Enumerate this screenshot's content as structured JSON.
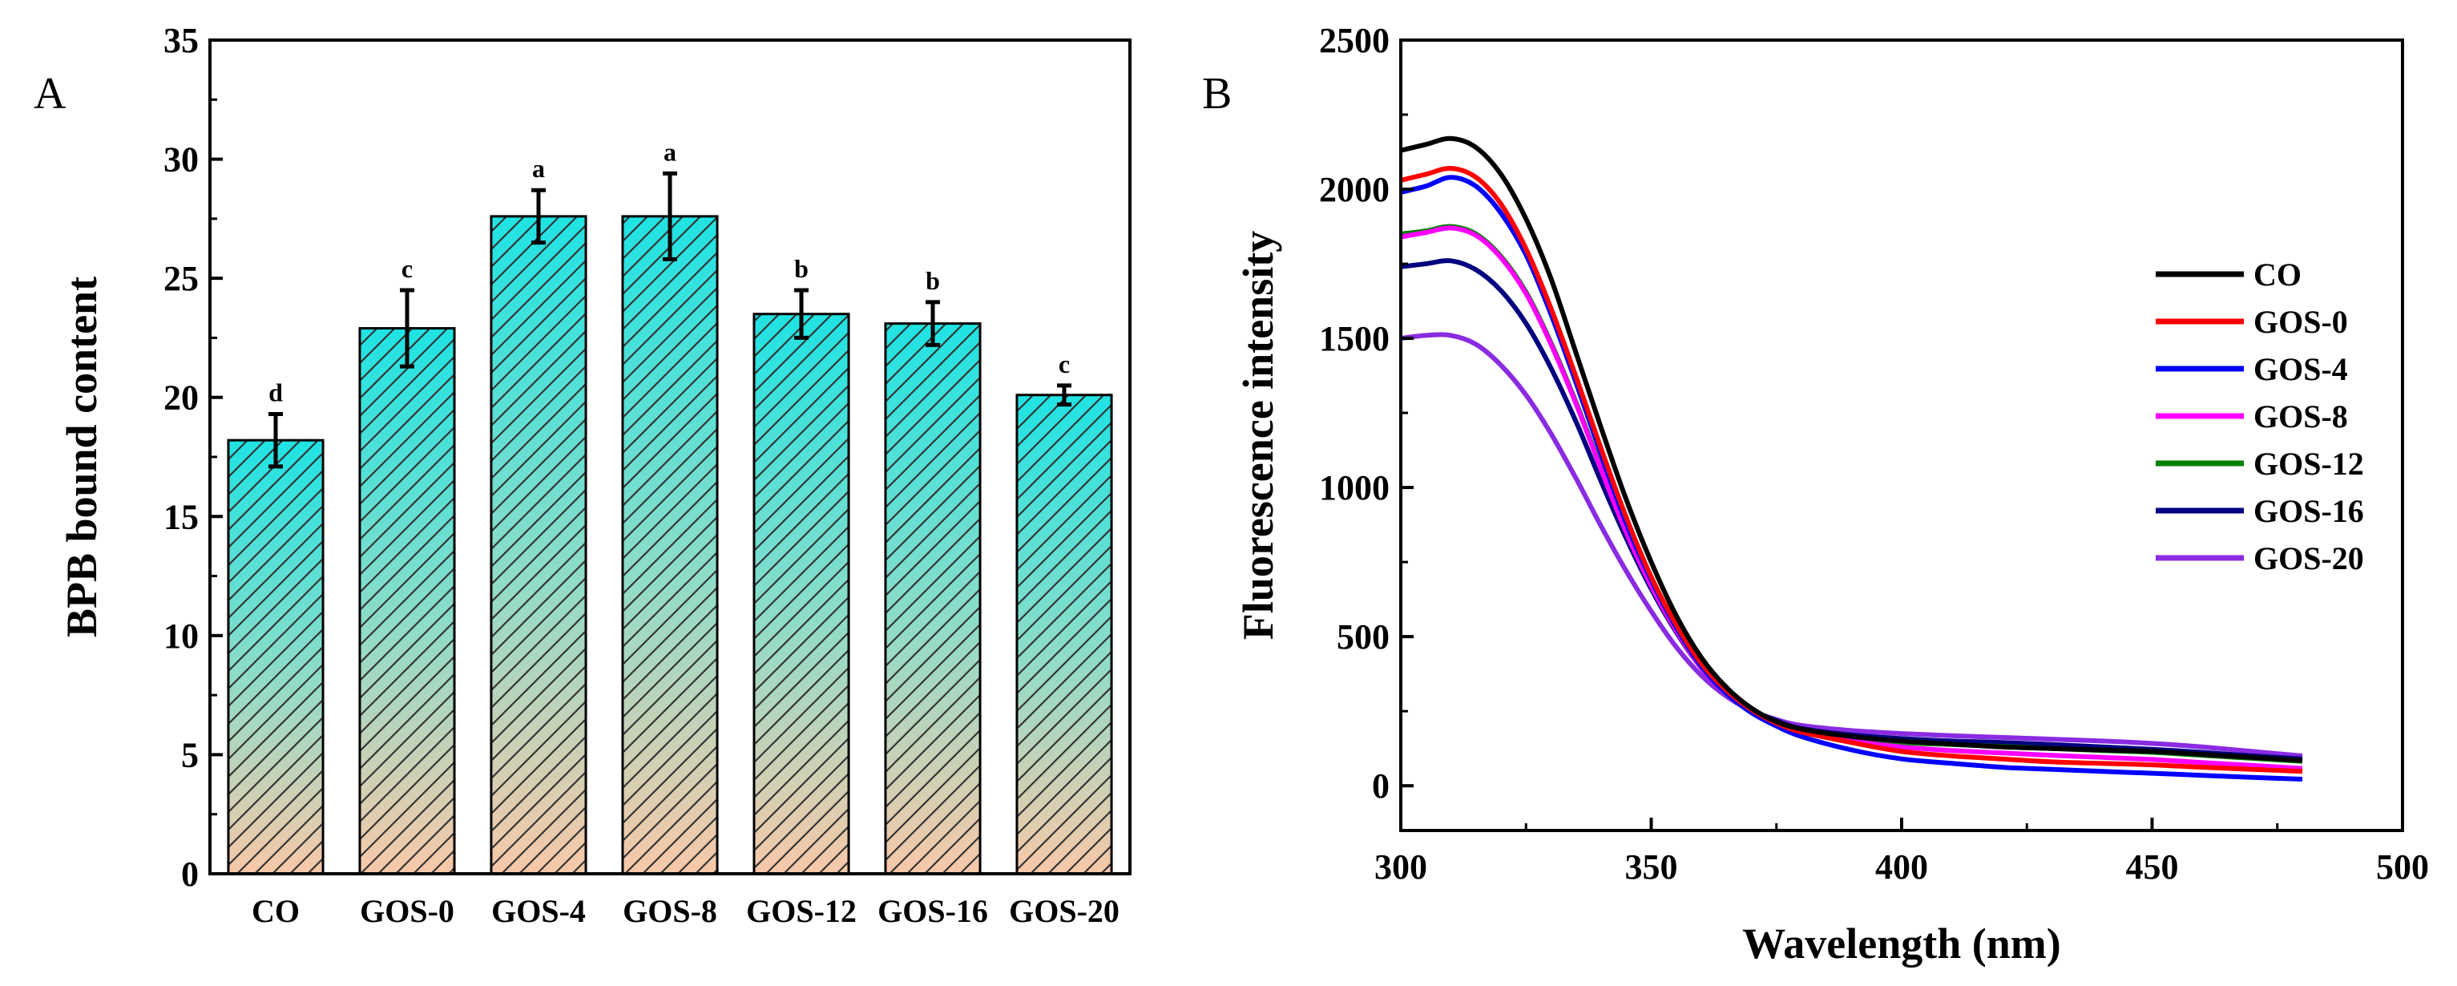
{
  "chart_data": [
    {
      "type": "bar",
      "panel_label": "A",
      "title": "",
      "xlabel": "",
      "ylabel": "BPB bound content",
      "ylim": [
        0,
        35
      ],
      "yticks": [
        "0",
        "5",
        "10",
        "15",
        "20",
        "25",
        "30",
        "35"
      ],
      "categories": [
        "CO",
        "GOS-0",
        "GOS-4",
        "GOS-8",
        "GOS-12",
        "GOS-16",
        "GOS-20"
      ],
      "values": [
        18.2,
        22.9,
        27.6,
        27.6,
        23.5,
        23.1,
        20.1
      ],
      "errors": [
        1.1,
        1.6,
        1.1,
        1.8,
        1.0,
        0.9,
        0.4
      ],
      "significance": [
        "d",
        "c",
        "a",
        "a",
        "b",
        "b",
        "c"
      ],
      "fill": {
        "top": "#1fe3e3",
        "bottom": "#f8c8a8",
        "hatch": "#333333"
      }
    },
    {
      "type": "line",
      "panel_label": "B",
      "title": "",
      "xlabel": "Wavelength (nm)",
      "ylabel": "Fluorescence intensity",
      "xlim": [
        300,
        500
      ],
      "ylim": [
        -150,
        2500
      ],
      "xticks": [
        "300",
        "350",
        "400",
        "450",
        "500"
      ],
      "yticks": [
        "0",
        "500",
        "1000",
        "1500",
        "2000",
        "2500"
      ],
      "legend": "right",
      "x": [
        300,
        305,
        310,
        315,
        320,
        325,
        330,
        335,
        340,
        345,
        350,
        355,
        360,
        365,
        370,
        375,
        380,
        390,
        400,
        410,
        420,
        430,
        440,
        450,
        460,
        470,
        480
      ],
      "series": [
        {
          "name": "CO",
          "color": "#000000",
          "values": [
            2130,
            2150,
            2170,
            2140,
            2050,
            1900,
            1700,
            1450,
            1200,
            960,
            750,
            570,
            430,
            330,
            260,
            215,
            190,
            165,
            150,
            140,
            130,
            125,
            120,
            115,
            105,
            95,
            85
          ]
        },
        {
          "name": "GOS-0",
          "color": "#ff0000",
          "values": [
            2030,
            2050,
            2070,
            2040,
            1950,
            1800,
            1600,
            1370,
            1130,
            900,
            700,
            540,
            410,
            320,
            255,
            210,
            180,
            145,
            115,
            100,
            90,
            80,
            75,
            70,
            62,
            55,
            48
          ]
        },
        {
          "name": "GOS-4",
          "color": "#0000ff",
          "values": [
            1990,
            2010,
            2040,
            2010,
            1920,
            1780,
            1580,
            1350,
            1110,
            880,
            690,
            530,
            400,
            310,
            245,
            200,
            165,
            120,
            90,
            75,
            62,
            55,
            48,
            42,
            35,
            28,
            22
          ]
        },
        {
          "name": "GOS-8",
          "color": "#ff00ff",
          "values": [
            1840,
            1855,
            1870,
            1845,
            1770,
            1650,
            1480,
            1280,
            1060,
            850,
            670,
            520,
            395,
            310,
            250,
            210,
            180,
            150,
            130,
            118,
            110,
            102,
            95,
            88,
            78,
            68,
            58
          ]
        },
        {
          "name": "GOS-12",
          "color": "#008000",
          "values": [
            1850,
            1860,
            1875,
            1850,
            1775,
            1655,
            1485,
            1285,
            1065,
            855,
            675,
            525,
            400,
            315,
            255,
            215,
            185,
            160,
            145,
            138,
            132,
            125,
            118,
            112,
            102,
            92,
            82
          ]
        },
        {
          "name": "GOS-16",
          "color": "#000080",
          "values": [
            1740,
            1750,
            1760,
            1730,
            1660,
            1550,
            1400,
            1220,
            1020,
            830,
            660,
            515,
            395,
            312,
            255,
            218,
            192,
            170,
            158,
            150,
            145,
            138,
            130,
            122,
            112,
            100,
            90
          ]
        },
        {
          "name": "GOS-20",
          "color": "#8a2be2",
          "values": [
            1500,
            1510,
            1510,
            1480,
            1410,
            1310,
            1180,
            1030,
            870,
            720,
            585,
            465,
            370,
            300,
            252,
            222,
            202,
            185,
            175,
            168,
            162,
            156,
            150,
            142,
            130,
            115,
            100
          ]
        }
      ]
    }
  ]
}
